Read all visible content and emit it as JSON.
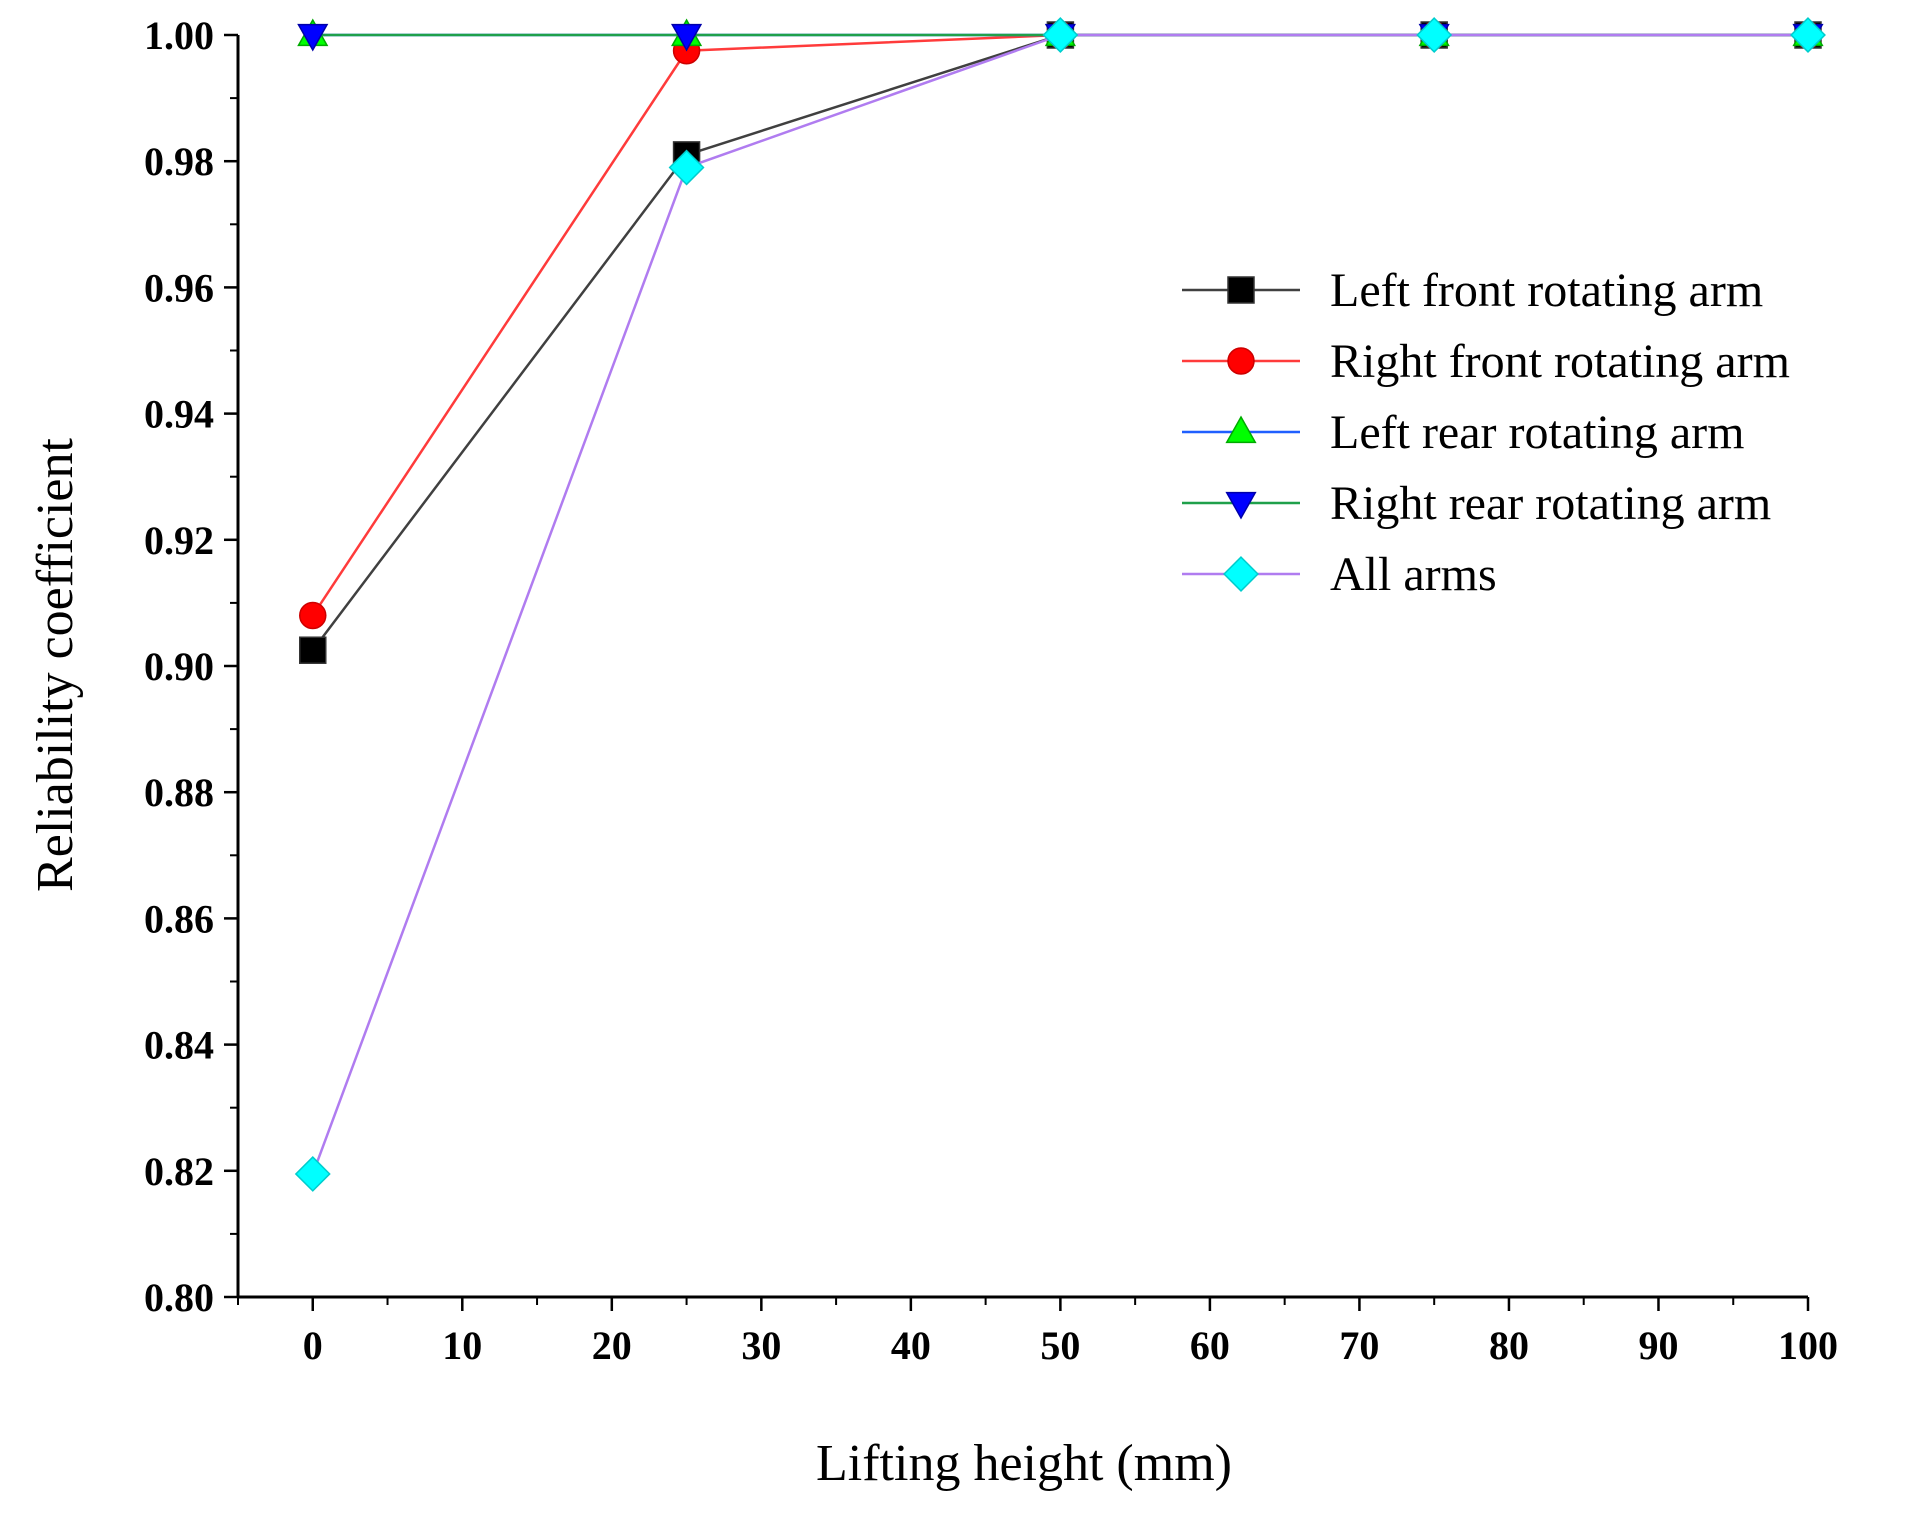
{
  "chart_data": {
    "type": "line",
    "title": "",
    "xlabel": "Lifting height (mm)",
    "ylabel": "Reliability coefficient",
    "xlim": [
      -5,
      100
    ],
    "ylim": [
      0.8,
      1.0
    ],
    "x_ticks": [
      0,
      10,
      20,
      30,
      40,
      50,
      60,
      70,
      80,
      90,
      100
    ],
    "y_ticks": [
      0.8,
      0.82,
      0.84,
      0.86,
      0.88,
      0.9,
      0.92,
      0.94,
      0.96,
      0.98,
      1.0
    ],
    "x_tick_labels": [
      "0",
      "10",
      "20",
      "30",
      "40",
      "50",
      "60",
      "70",
      "80",
      "90",
      "100"
    ],
    "y_tick_labels": [
      "0.80",
      "0.82",
      "0.84",
      "0.86",
      "0.88",
      "0.90",
      "0.92",
      "0.94",
      "0.96",
      "0.98",
      "1.00"
    ],
    "grid": false,
    "legend_position": "right",
    "series": [
      {
        "name": "Left front rotating arm",
        "line_color": "#404040",
        "marker_color": "#000000",
        "marker": "square",
        "x": [
          0,
          25,
          50,
          75,
          100
        ],
        "y": [
          0.9025,
          0.981,
          1.0,
          1.0,
          1.0
        ]
      },
      {
        "name": "Right front rotating arm",
        "line_color": "#ff3b3b",
        "marker_color": "#ff0000",
        "marker": "circle",
        "x": [
          0,
          25,
          50,
          75,
          100
        ],
        "y": [
          0.908,
          0.9975,
          1.0,
          1.0,
          1.0
        ]
      },
      {
        "name": "Left rear rotating arm",
        "line_color": "#1f5fff",
        "marker_color": "#00ff00",
        "marker": "triangle-up",
        "x": [
          0,
          25,
          50,
          75,
          100
        ],
        "y": [
          1.0,
          1.0,
          1.0,
          1.0,
          1.0
        ]
      },
      {
        "name": "Right rear rotating arm",
        "line_color": "#1fa04a",
        "marker_color": "#0000ff",
        "marker": "triangle-down",
        "x": [
          0,
          25,
          50,
          75,
          100
        ],
        "y": [
          1.0,
          1.0,
          1.0,
          1.0,
          1.0
        ]
      },
      {
        "name": "All arms",
        "line_color": "#b07cf0",
        "marker_color": "#00ffff",
        "marker": "diamond",
        "x": [
          0,
          25,
          50,
          75,
          100
        ],
        "y": [
          0.8195,
          0.979,
          1.0,
          1.0,
          1.0
        ]
      }
    ]
  }
}
